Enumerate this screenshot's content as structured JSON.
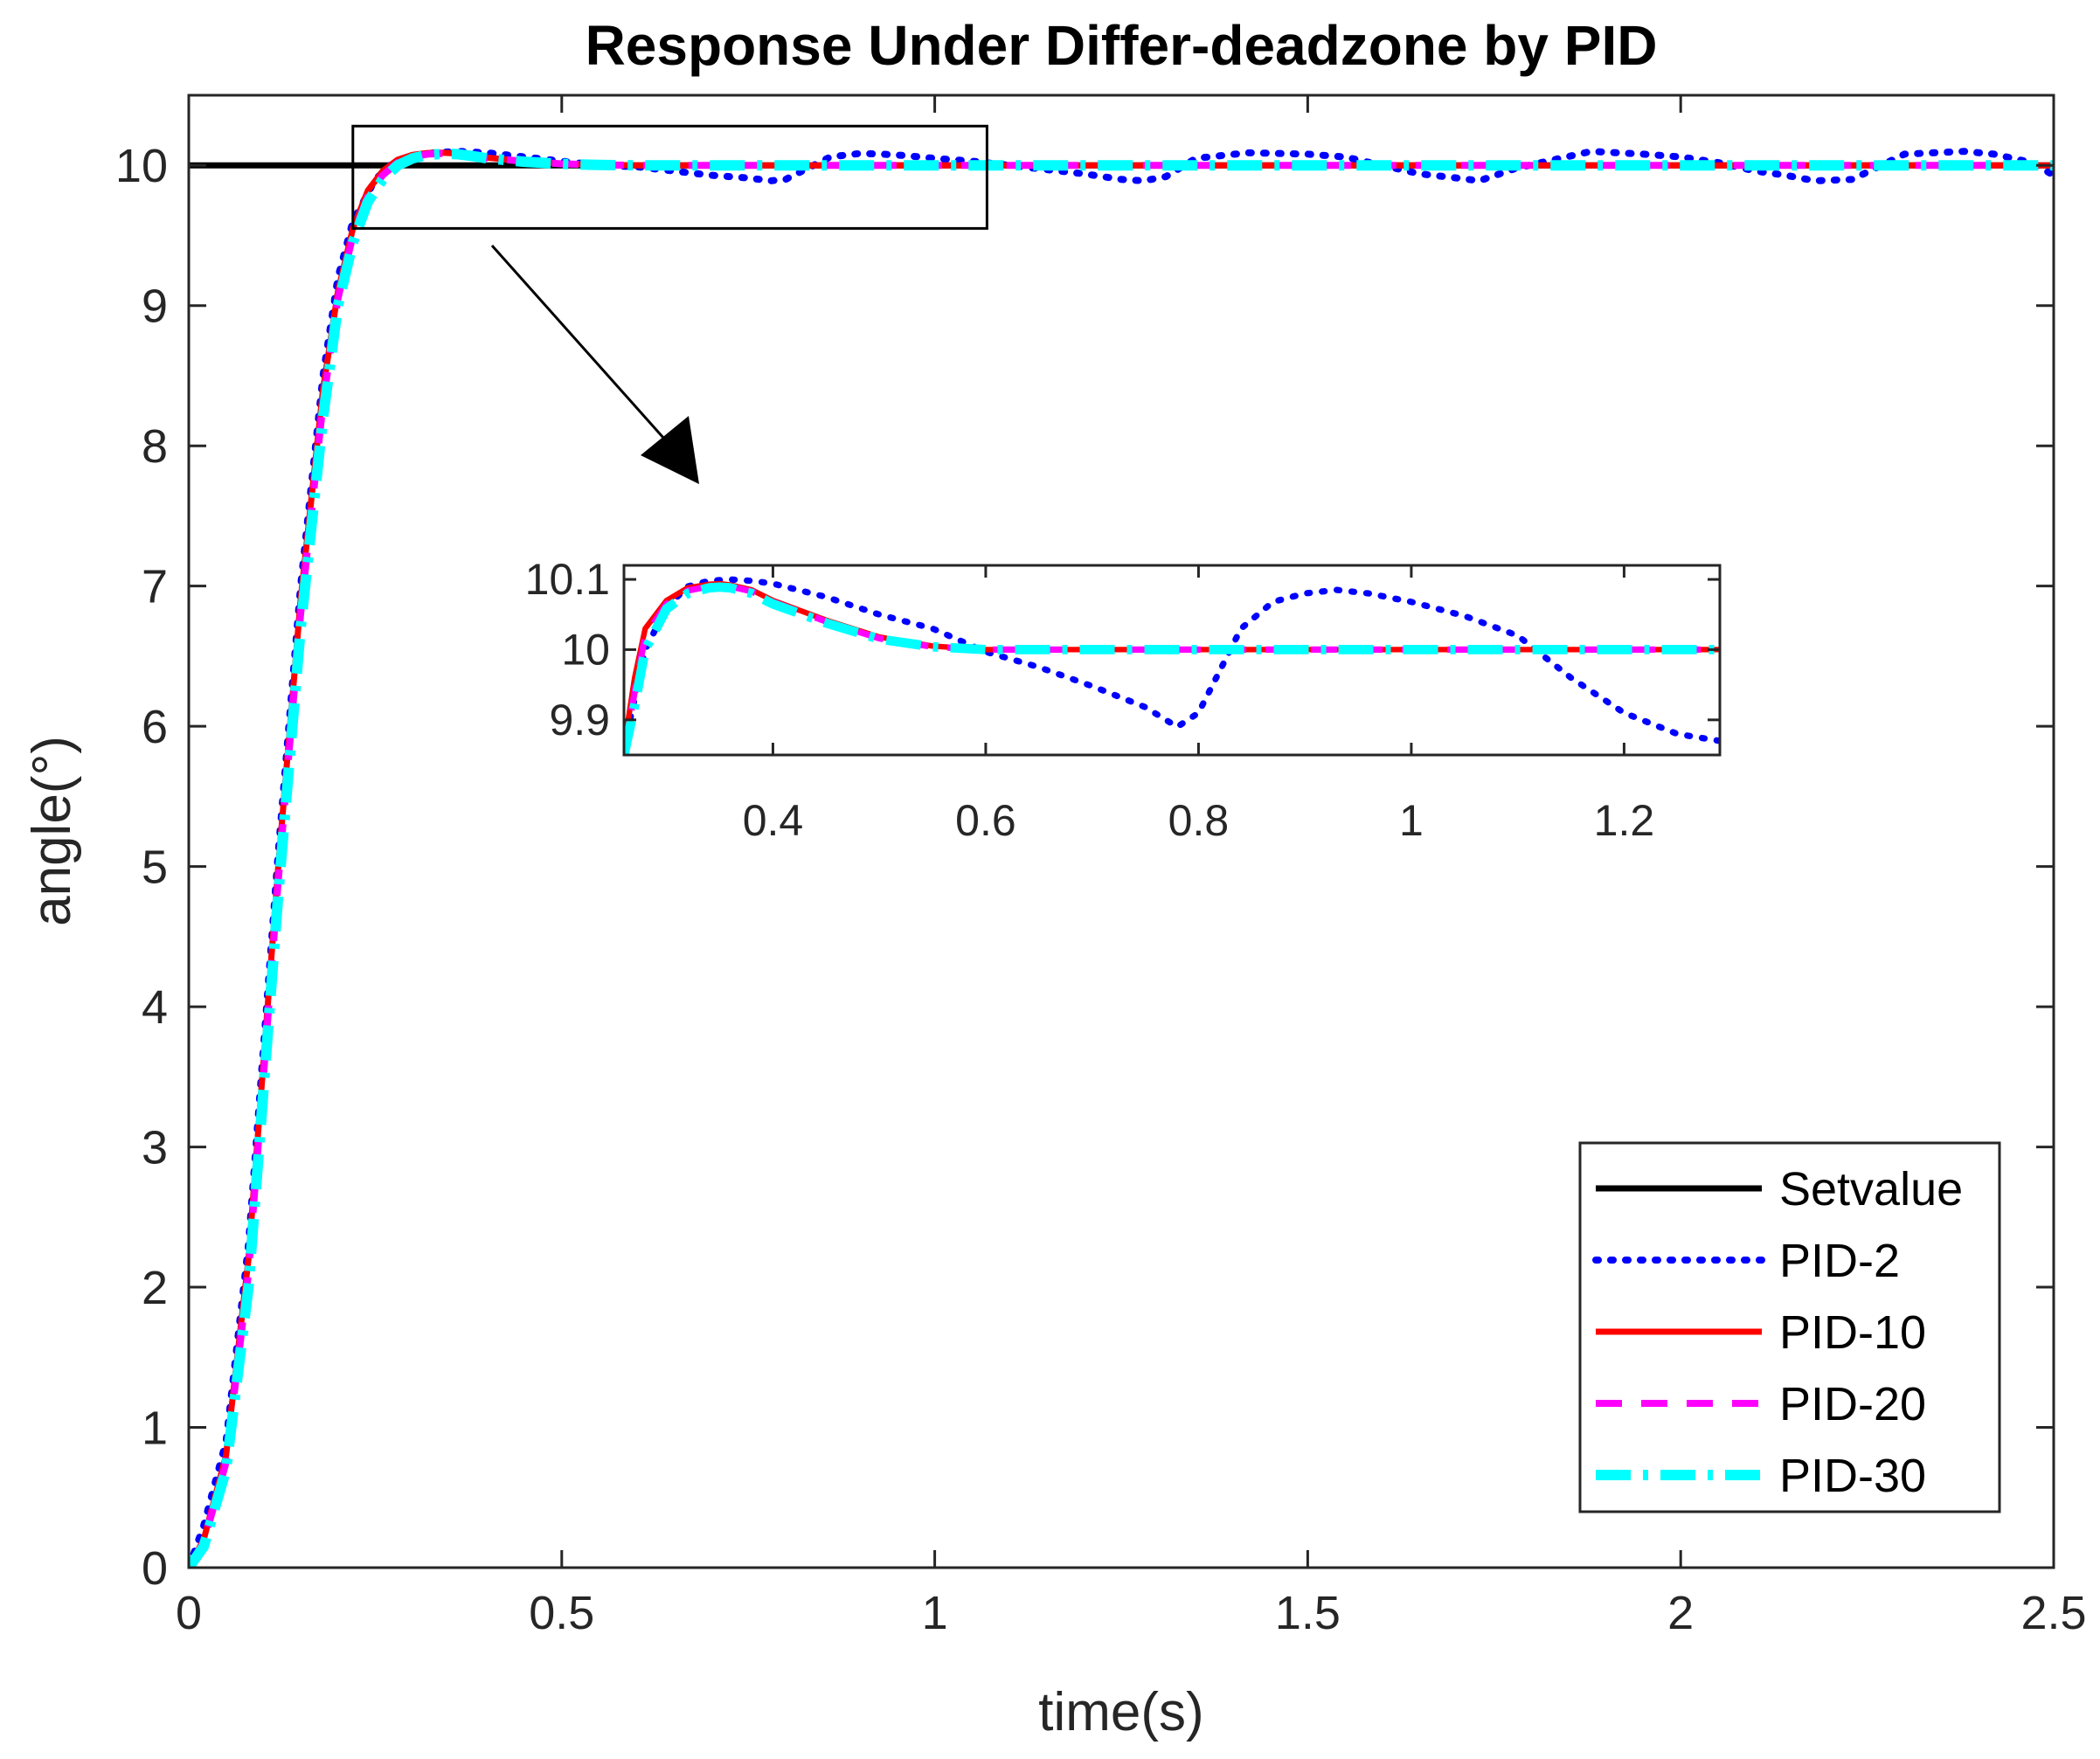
{
  "chart_data": {
    "type": "line",
    "title": "Response Under Differ-deadzone by PID",
    "xlabel": "time(s)",
    "ylabel": "angle(°)",
    "xlim": [
      0,
      2.5
    ],
    "ylim": [
      0,
      10.5
    ],
    "xticks": [
      0,
      0.5,
      1,
      1.5,
      2,
      2.5
    ],
    "xtick_labels": [
      "0",
      "0.5",
      "1",
      "1.5",
      "2",
      "2.5"
    ],
    "yticks": [
      0,
      1,
      2,
      3,
      4,
      5,
      6,
      7,
      8,
      9,
      10
    ],
    "ytick_labels": [
      "0",
      "1",
      "2",
      "3",
      "4",
      "5",
      "6",
      "7",
      "8",
      "9",
      "10"
    ],
    "legend_position": "bottom-right",
    "series": [
      {
        "name": "Setvalue",
        "color": "#000000",
        "style": "solid",
        "x": [
          0,
          2.5
        ],
        "y": [
          10,
          10
        ]
      },
      {
        "name": "PID-2",
        "color": "#0000ff",
        "style": "dotted",
        "x": [
          0,
          0.02,
          0.05,
          0.08,
          0.1,
          0.12,
          0.15,
          0.18,
          0.2,
          0.22,
          0.25,
          0.27,
          0.3,
          0.33,
          0.36,
          0.4,
          0.45,
          0.5,
          0.55,
          0.6,
          0.65,
          0.7,
          0.75,
          0.78,
          0.8,
          0.83,
          0.86,
          0.9,
          0.93,
          0.96,
          1.0,
          1.05,
          1.1,
          1.15,
          1.2,
          1.25,
          1.28,
          1.31,
          1.35,
          1.42,
          1.5,
          1.55,
          1.6,
          1.65,
          1.7,
          1.73,
          1.78,
          1.88,
          1.95,
          2.0,
          2.05,
          2.1,
          2.14,
          2.18,
          2.23,
          2.3,
          2.38,
          2.42,
          2.47,
          2.5
        ],
        "y": [
          0,
          0.3,
          0.9,
          2.3,
          3.7,
          5.1,
          7.0,
          8.5,
          9.2,
          9.6,
          9.9,
          10.0,
          10.07,
          10.09,
          10.1,
          10.09,
          10.06,
          10.03,
          10.0,
          9.99,
          9.96,
          9.93,
          9.91,
          9.89,
          9.9,
          9.98,
          10.06,
          10.085,
          10.08,
          10.07,
          10.05,
          10.03,
          10.0,
          9.97,
          9.94,
          9.9,
          9.89,
          9.92,
          10.05,
          10.09,
          10.08,
          10.06,
          10.0,
          9.94,
          9.91,
          9.89,
          9.98,
          10.1,
          10.08,
          10.06,
          10.02,
          9.96,
          9.93,
          9.89,
          9.9,
          10.08,
          10.1,
          10.08,
          10.02,
          9.93
        ]
      },
      {
        "name": "PID-10",
        "color": "#ff0000",
        "style": "solid",
        "x": [
          0,
          0.02,
          0.05,
          0.08,
          0.1,
          0.12,
          0.15,
          0.18,
          0.2,
          0.22,
          0.24,
          0.26,
          0.28,
          0.3,
          0.32,
          0.34,
          0.36,
          0.38,
          0.4,
          0.45,
          0.5,
          0.55,
          0.6,
          0.8,
          1.0,
          1.5,
          2.0,
          2.5
        ],
        "y": [
          0,
          0.2,
          0.8,
          2.2,
          3.6,
          5.0,
          6.9,
          8.4,
          9.1,
          9.55,
          9.82,
          9.96,
          10.04,
          10.075,
          10.088,
          10.09,
          10.085,
          10.07,
          10.055,
          10.03,
          10.012,
          10.004,
          10.0,
          10.0,
          10.0,
          10.0,
          10.0,
          10.0
        ]
      },
      {
        "name": "PID-20",
        "color": "#ff00ff",
        "style": "dashed",
        "x": [
          0,
          0.02,
          0.05,
          0.08,
          0.1,
          0.12,
          0.15,
          0.18,
          0.2,
          0.22,
          0.24,
          0.26,
          0.28,
          0.3,
          0.32,
          0.34,
          0.36,
          0.38,
          0.4,
          0.45,
          0.5,
          0.55,
          0.6,
          0.8,
          1.0,
          1.5,
          2.0,
          2.5
        ],
        "y": [
          0,
          0.18,
          0.75,
          2.1,
          3.5,
          4.9,
          6.8,
          8.3,
          9.05,
          9.5,
          9.78,
          9.93,
          10.02,
          10.06,
          10.08,
          10.085,
          10.082,
          10.068,
          10.052,
          10.028,
          10.011,
          10.004,
          10.0,
          10.0,
          10.0,
          10.0,
          10.0,
          10.0
        ]
      },
      {
        "name": "PID-30",
        "color": "#00ffff",
        "style": "dashdot",
        "x": [
          0,
          0.02,
          0.05,
          0.08,
          0.1,
          0.12,
          0.15,
          0.18,
          0.2,
          0.22,
          0.24,
          0.26,
          0.28,
          0.3,
          0.32,
          0.34,
          0.36,
          0.38,
          0.4,
          0.45,
          0.5,
          0.55,
          0.6,
          0.8,
          1.0,
          1.5,
          2.0,
          2.5
        ],
        "y": [
          0,
          0.15,
          0.7,
          2.0,
          3.4,
          4.8,
          6.7,
          8.2,
          9.0,
          9.45,
          9.74,
          9.9,
          10.0,
          10.05,
          10.075,
          10.082,
          10.08,
          10.066,
          10.05,
          10.026,
          10.01,
          10.003,
          10.0,
          10.0,
          10.0,
          10.0,
          10.0,
          10.0
        ]
      }
    ],
    "zoom_box": {
      "xlim": [
        0.22,
        1.07
      ],
      "ylim": [
        9.55,
        10.28
      ]
    },
    "inset": {
      "xlim": [
        0.26,
        1.29
      ],
      "ylim": [
        9.85,
        10.12
      ],
      "xticks": [
        0.4,
        0.6,
        0.8,
        1.0,
        1.2
      ],
      "xtick_labels": [
        "0.4",
        "0.6",
        "0.8",
        "1",
        "1.2"
      ],
      "yticks": [
        9.9,
        10.0,
        10.1
      ],
      "ytick_labels": [
        "9.9",
        "10",
        "10.1"
      ],
      "series": [
        {
          "name": "PID-2",
          "color": "#0000ff",
          "style": "dotted",
          "x": [
            0.26,
            0.28,
            0.3,
            0.32,
            0.34,
            0.36,
            0.38,
            0.4,
            0.45,
            0.5,
            0.55,
            0.6,
            0.65,
            0.7,
            0.75,
            0.78,
            0.8,
            0.82,
            0.84,
            0.87,
            0.9,
            0.93,
            0.96,
            1.0,
            1.05,
            1.1,
            1.15,
            1.2,
            1.25,
            1.29
          ],
          "y": [
            9.86,
            10.0,
            10.06,
            10.09,
            10.098,
            10.1,
            10.098,
            10.094,
            10.075,
            10.05,
            10.03,
            9.997,
            9.975,
            9.948,
            9.918,
            9.89,
            9.91,
            9.97,
            10.03,
            10.068,
            10.08,
            10.085,
            10.08,
            10.068,
            10.048,
            10.02,
            9.96,
            9.91,
            9.88,
            9.87
          ]
        },
        {
          "name": "PID-10",
          "color": "#ff0000",
          "style": "solid",
          "x": [
            0.26,
            0.27,
            0.28,
            0.3,
            0.32,
            0.34,
            0.35,
            0.36,
            0.38,
            0.4,
            0.45,
            0.5,
            0.55,
            0.6,
            0.8,
            1.0,
            1.29
          ],
          "y": [
            9.86,
            9.96,
            10.03,
            10.07,
            10.088,
            10.093,
            10.094,
            10.092,
            10.085,
            10.07,
            10.042,
            10.018,
            10.005,
            10.0,
            10.0,
            10.0,
            10.0
          ]
        },
        {
          "name": "PID-20",
          "color": "#ff00ff",
          "style": "dashed",
          "x": [
            0.26,
            0.27,
            0.28,
            0.3,
            0.32,
            0.34,
            0.35,
            0.36,
            0.38,
            0.4,
            0.45,
            0.5,
            0.55,
            0.6,
            0.8,
            1.0,
            1.29
          ],
          "y": [
            9.85,
            9.94,
            10.02,
            10.065,
            10.084,
            10.09,
            10.091,
            10.09,
            10.083,
            10.068,
            10.04,
            10.016,
            10.004,
            10.0,
            10.0,
            10.0,
            10.0
          ]
        },
        {
          "name": "PID-30",
          "color": "#00ffff",
          "style": "dashdot",
          "x": [
            0.26,
            0.27,
            0.28,
            0.3,
            0.32,
            0.34,
            0.35,
            0.36,
            0.38,
            0.4,
            0.45,
            0.5,
            0.55,
            0.6,
            0.8,
            1.0,
            1.29
          ],
          "y": [
            9.85,
            9.92,
            10.0,
            10.058,
            10.08,
            10.088,
            10.089,
            10.088,
            10.08,
            10.065,
            10.038,
            10.015,
            10.004,
            10.0,
            10.0,
            10.0,
            10.0
          ]
        }
      ]
    }
  }
}
